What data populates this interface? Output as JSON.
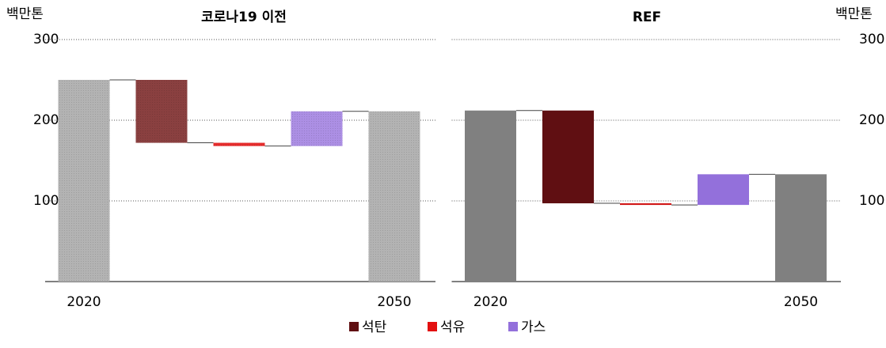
{
  "chart_data": [
    {
      "type": "waterfall",
      "title": "코로나19 이전",
      "y_label": "백만톤",
      "y_axis_side": "left",
      "categories": [
        "2020",
        null,
        null,
        null,
        "2050"
      ],
      "measure": [
        "absolute",
        "relative",
        "relative",
        "relative",
        "total"
      ],
      "values": [
        250,
        -78,
        -4,
        43,
        211
      ],
      "colors": [
        "#a8a8a8",
        "#7a2525",
        "#e31010",
        "#a07fe0",
        "#a8a8a8"
      ],
      "ylim": [
        0,
        300
      ],
      "yticks": [
        100,
        200,
        300
      ],
      "grid": true
    },
    {
      "type": "waterfall",
      "title": "REF",
      "y_label": "백만톤",
      "y_axis_side": "right",
      "categories": [
        "2020",
        null,
        null,
        null,
        "2050"
      ],
      "measure": [
        "absolute",
        "relative",
        "relative",
        "relative",
        "total"
      ],
      "values": [
        212,
        -115,
        -2,
        38,
        133
      ],
      "colors": [
        "#808080",
        "#600f12",
        "#d01010",
        "#9370db",
        "#808080"
      ],
      "ylim": [
        0,
        300
      ],
      "yticks": [
        100,
        200,
        300
      ],
      "grid": true
    }
  ],
  "legend": [
    {
      "name": "석탄",
      "color": "#600f12"
    },
    {
      "name": "석유",
      "color": "#e31010"
    },
    {
      "name": "가스",
      "color": "#9370db"
    }
  ]
}
